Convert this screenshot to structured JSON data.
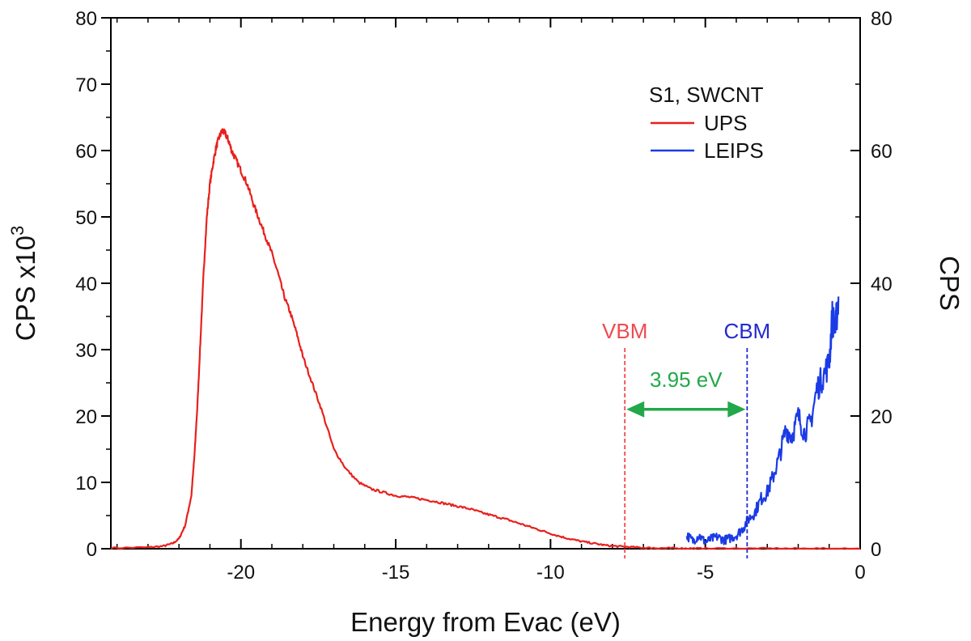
{
  "chart_data": {
    "type": "line",
    "xlabel": "Energy from Evac (eV)",
    "ylabel_left": "CPS x10",
    "ylabel_left_superscript": "3",
    "ylabel_right": "CPS",
    "xlim": [
      -24.2,
      0
    ],
    "ylim_left": [
      0,
      80
    ],
    "ylim_right": [
      0,
      80
    ],
    "x_ticks": [
      -20,
      -15,
      -10,
      -5,
      0
    ],
    "x_tick_labels": [
      "-20",
      "-15",
      "-10",
      "-5",
      "0"
    ],
    "y_left_ticks": [
      0,
      10,
      20,
      30,
      40,
      50,
      60,
      70,
      80
    ],
    "y_left_tick_labels": [
      "0",
      "10",
      "20",
      "30",
      "40",
      "50",
      "60",
      "70",
      "80"
    ],
    "y_right_ticks": [
      0,
      20,
      40,
      60,
      80
    ],
    "y_right_tick_labels": [
      "0",
      "20",
      "40",
      "60",
      "80"
    ],
    "grid": false,
    "legend": {
      "title": "S1, SWCNT",
      "placement": "top-right",
      "entries": [
        {
          "label": "UPS",
          "color": "#e8201c"
        },
        {
          "label": "LEIPS",
          "color": "#1a3be6"
        }
      ]
    },
    "series": [
      {
        "name": "UPS",
        "axis": "left",
        "color": "#e8201c",
        "x": [
          -24.2,
          -23,
          -22.5,
          -22.2,
          -22,
          -21.8,
          -21.6,
          -21.5,
          -21.4,
          -21.3,
          -21.2,
          -21.1,
          -21.0,
          -20.9,
          -20.8,
          -20.7,
          -20.6,
          -20.5,
          -20.4,
          -20.3,
          -20.2,
          -20.0,
          -19.8,
          -19.6,
          -19.4,
          -19.2,
          -19.0,
          -18.8,
          -18.6,
          -18.4,
          -18.2,
          -18.0,
          -17.7,
          -17.4,
          -17.0,
          -16.6,
          -16.2,
          -15.8,
          -15.4,
          -15.0,
          -14.6,
          -14.2,
          -13.8,
          -13.4,
          -13.0,
          -12.6,
          -12.2,
          -11.8,
          -11.4,
          -11.0,
          -10.6,
          -10.2,
          -9.8,
          -9.4,
          -9.0,
          -8.6,
          -8.2,
          -7.8,
          -7.4,
          -7.0,
          -6.6,
          -6.2,
          -5.8,
          -5.4,
          -5.0,
          -4.0,
          -3.0,
          -2.0,
          -1.0,
          0.0
        ],
        "y": [
          0.1,
          0.2,
          0.4,
          0.8,
          1.5,
          3.5,
          8,
          14,
          22,
          32,
          42,
          50,
          55,
          58,
          60.5,
          62,
          63,
          62.5,
          61.5,
          60,
          59,
          57,
          55,
          52,
          49.5,
          47,
          44.5,
          41.5,
          38,
          35.5,
          32.5,
          29,
          25,
          21,
          15,
          12,
          10,
          9,
          8.5,
          8,
          7.8,
          7.5,
          7.2,
          6.8,
          6.4,
          6.0,
          5.4,
          4.9,
          4.4,
          3.8,
          3.2,
          2.6,
          2.0,
          1.5,
          1.1,
          0.8,
          0.5,
          0.35,
          0.25,
          0.15,
          0.1,
          0.08,
          0.05,
          0.04,
          0.03,
          0.02,
          0.02,
          0.01,
          0.01,
          0.0
        ]
      },
      {
        "name": "LEIPS",
        "axis": "right",
        "color": "#1a3be6",
        "x": [
          -5.6,
          -5.4,
          -5.2,
          -5.0,
          -4.8,
          -4.6,
          -4.4,
          -4.2,
          -4.0,
          -3.8,
          -3.6,
          -3.4,
          -3.2,
          -3.0,
          -2.8,
          -2.6,
          -2.4,
          -2.2,
          -2.0,
          -1.8,
          -1.6,
          -1.4,
          -1.2,
          -1.0,
          -0.9,
          -0.8,
          -0.7
        ],
        "y": [
          2,
          1.2,
          2.0,
          1.0,
          1.5,
          1.8,
          1.3,
          1.6,
          2.0,
          3.0,
          4.5,
          5.5,
          7.5,
          8.5,
          11,
          14,
          18,
          17,
          20,
          17.5,
          19,
          24,
          26,
          28,
          35,
          33,
          38
        ]
      }
    ],
    "annotations": {
      "vbm": {
        "label": "VBM",
        "x": -7.6,
        "color": "#f0494f"
      },
      "cbm": {
        "label": "CBM",
        "x": -3.65,
        "color": "#2229d0"
      },
      "gap": {
        "label": "3.95 eV",
        "x_from": -7.6,
        "x_to": -3.65,
        "y": 21,
        "color": "#22a84a"
      }
    }
  }
}
